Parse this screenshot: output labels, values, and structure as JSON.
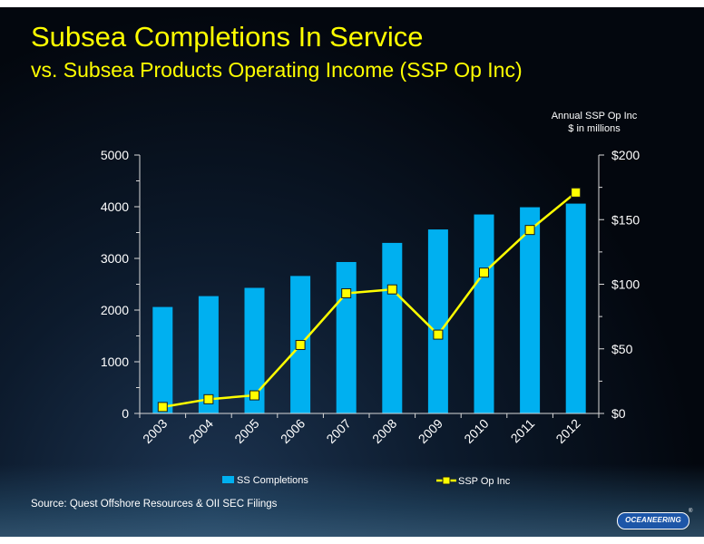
{
  "title": "Subsea Completions In Service",
  "subtitle": "vs. Subsea Products Operating Income (SSP Op Inc)",
  "right_axis_note": [
    "Annual SSP Op Inc",
    "$ in millions"
  ],
  "source": "Source:  Quest Offshore Resources & OII SEC Filings",
  "logo_text": "OCEANEERING",
  "logo_mark": "®",
  "colors": {
    "title": "#ffff00",
    "bar": "#00b0f0",
    "line": "#ffff00",
    "marker_fill": "#ffff00",
    "marker_stroke": "#1a1a1a",
    "axis": "#d9d9d9",
    "text": "#ffffff"
  },
  "chart_data": {
    "type": "bar",
    "categories": [
      "2003",
      "2004",
      "2005",
      "2006",
      "2007",
      "2008",
      "2009",
      "2010",
      "2011",
      "2012"
    ],
    "series": [
      {
        "name": "SS Completions",
        "type": "bar",
        "axis": "left",
        "values": [
          2060,
          2270,
          2430,
          2660,
          2930,
          3300,
          3560,
          3850,
          3990,
          4060
        ]
      },
      {
        "name": "SSP Op Inc",
        "type": "line",
        "axis": "right",
        "values": [
          5,
          11,
          14,
          53,
          93,
          96,
          61,
          109,
          142,
          171
        ]
      }
    ],
    "y_left": {
      "min": 0,
      "max": 5000,
      "ticks": [
        "0",
        "1000",
        "2000",
        "3000",
        "4000",
        "5000"
      ],
      "tick_values": [
        0,
        1000,
        2000,
        3000,
        4000,
        5000
      ]
    },
    "y_right": {
      "min": 0,
      "max": 200,
      "ticks": [
        "$0",
        "$50",
        "$100",
        "$150",
        "$200"
      ],
      "tick_values": [
        0,
        50,
        100,
        150,
        200
      ]
    },
    "legend": {
      "position": "bottom",
      "items": [
        "SS Completions",
        "SSP Op Inc"
      ]
    },
    "grid": false
  }
}
